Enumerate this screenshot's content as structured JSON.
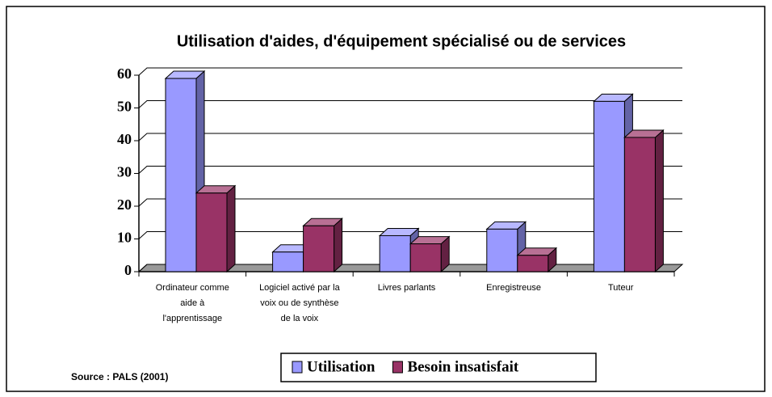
{
  "chart_data": {
    "type": "bar3d",
    "title": "Utilisation d'aides, d'équipement spécialisé ou de services",
    "categories": [
      [
        "Ordinateur comme",
        "aide à",
        "l'apprentissage"
      ],
      [
        "Logiciel activé par la",
        "voix ou de synthèse",
        "de la voix"
      ],
      [
        "Livres parlants"
      ],
      [
        "Enregistreuse"
      ],
      [
        "Tuteur"
      ]
    ],
    "series": [
      {
        "name": "Utilisation",
        "color": "#9999ff",
        "values": [
          59,
          6,
          11,
          13,
          52
        ]
      },
      {
        "name": "Besoin insatisfait",
        "color": "#993366",
        "values": [
          24,
          14,
          8.5,
          5,
          41
        ]
      }
    ],
    "ylim": [
      0,
      60
    ],
    "yticks": [
      0,
      10,
      20,
      30,
      40,
      50,
      60
    ],
    "grid": true,
    "legend": "bottom",
    "source": "Source : PALS (2001)"
  }
}
